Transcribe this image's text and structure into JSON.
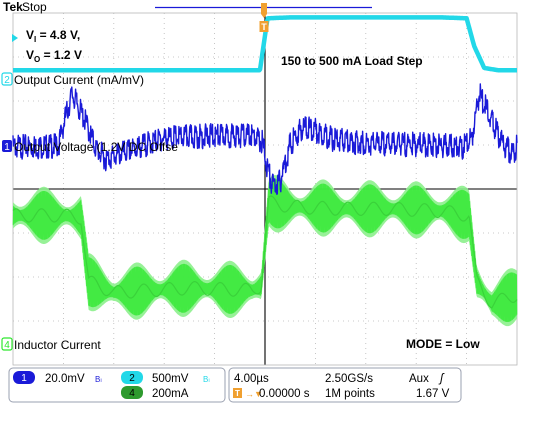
{
  "header": {
    "brand": "Tek",
    "run_state": "Stop"
  },
  "conditions": {
    "vin_label": "V",
    "vin_sub": "I",
    "vin_value": " = 4.8 V,",
    "vout_label": "V",
    "vout_sub": "O",
    "vout_value": " = 1.2 V"
  },
  "annotations": {
    "load_step": "150 to 500 mA Load Step",
    "mode": "MODE = Low"
  },
  "channel_markers": {
    "ch1": "1",
    "ch2": "2",
    "ch4": "4",
    "trigger": "T"
  },
  "status_bar": {
    "ch1_scale": "20.0mV",
    "ch1_bw": "Bₗ",
    "ch2_scale": "500mV",
    "ch2_bw": "Bₗ",
    "ch4_scale": "200mA",
    "timebase": "4.00µs",
    "sample_rate": "2.50GS/s",
    "trigger_source": "Aux",
    "trigger_slope": "ʃ",
    "trigger_delay": "0.00000 s",
    "record_length": "1M points",
    "trigger_level": "1.67 V"
  },
  "colors": {
    "ch1": "#1a1ad8",
    "ch2": "#22d8e8",
    "ch4": "#2ee82e",
    "ch4_light": "#8cf08c",
    "trigger": "#f0a030",
    "grid": "#b8b8b8",
    "center_line": "#000000"
  },
  "chart_data": {
    "type": "line",
    "title": "",
    "time_per_div_us": 4.0,
    "x_divisions": 10,
    "y_divisions": 8,
    "xlim_us": [
      -20,
      20
    ],
    "ylim_div": [
      -4,
      4
    ],
    "grid": true,
    "step_up_time_us": 0.0,
    "step_down_time_us": 16.4,
    "series": [
      {
        "name": "Output Current (mA/mV)",
        "channel": 2,
        "scale": "500mV/div",
        "label_level_div": 2.75,
        "low_level_div": 2.7,
        "high_level_div": 3.9,
        "x_us": [
          -20,
          -16,
          -12,
          -8,
          -4,
          -2,
          -0.4,
          0.2,
          2,
          6,
          10,
          14,
          16.0,
          16.6,
          17.4,
          18.5,
          20
        ],
        "y_div": [
          2.7,
          2.7,
          2.7,
          2.7,
          2.7,
          2.7,
          2.7,
          3.88,
          3.9,
          3.9,
          3.9,
          3.9,
          3.88,
          3.25,
          2.75,
          2.7,
          2.7
        ]
      },
      {
        "name": "Output Voltage (1.2V DC Offse",
        "channel": 1,
        "scale": "20.0mV/div",
        "label_level_div": 1.1,
        "x_us": [
          -20,
          -17.5,
          -16.4,
          -15.9,
          -15.3,
          -14.3,
          -13.4,
          -12.6,
          -8,
          -4,
          -1,
          -0.2,
          0.2,
          0.6,
          1.2,
          2.0,
          3.0,
          4.2,
          5.5,
          8,
          12,
          15.8,
          16.4,
          17.0,
          18.0,
          18.8,
          19.6,
          20
        ],
        "y_div": [
          1.1,
          1.1,
          1.12,
          1.7,
          2.3,
          1.7,
          1.05,
          0.82,
          1.3,
          1.35,
          1.35,
          1.2,
          0.6,
          0.22,
          0.3,
          1.15,
          1.55,
          1.45,
          1.25,
          1.18,
          1.15,
          1.1,
          1.3,
          2.3,
          1.7,
          1.18,
          0.95,
          1.1
        ]
      },
      {
        "name": "Inductor Current",
        "channel": 4,
        "scale": "200mA/div",
        "label_level_div": -3.3,
        "ripple_pp_div": 1.3,
        "x_us": [
          -20,
          -16,
          -14.6,
          -14.0,
          -12,
          -6,
          -1,
          -0.3,
          0.3,
          2,
          6,
          10,
          14,
          16.2,
          16.8,
          18,
          20
        ],
        "y_div": [
          -0.6,
          -0.6,
          -0.65,
          -2.1,
          -2.35,
          -2.25,
          -2.3,
          -2.2,
          -0.3,
          -0.4,
          -0.45,
          -0.45,
          -0.5,
          -0.6,
          -2.1,
          -2.6,
          -2.4
        ]
      }
    ]
  }
}
